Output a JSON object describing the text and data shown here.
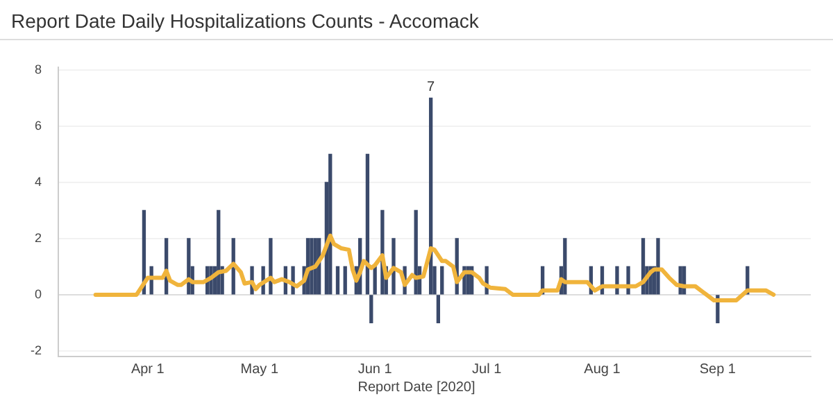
{
  "chart_data": {
    "type": "bar",
    "title": "Report Date Daily Hospitalizations Counts - Accomack",
    "xlabel": "Report Date [2020]",
    "xlim": [
      "2020-03-08",
      "2020-09-26"
    ],
    "xticks": [
      {
        "value": "2020-04-01",
        "label": "Apr 1"
      },
      {
        "value": "2020-05-01",
        "label": "May 1"
      },
      {
        "value": "2020-06-01",
        "label": "Jun 1"
      },
      {
        "value": "2020-07-01",
        "label": "Jul 1"
      },
      {
        "value": "2020-08-01",
        "label": "Aug 1"
      },
      {
        "value": "2020-09-01",
        "label": "Sep 1"
      }
    ],
    "ylim": [
      -2.2,
      8.1
    ],
    "yticks": [
      -2,
      0,
      2,
      4,
      6,
      8
    ],
    "grid": "y",
    "legend": false,
    "annotations": [
      {
        "text": "7",
        "x": "2020-06-16",
        "y": 7
      }
    ],
    "series": [
      {
        "color": "#3b4a6b",
        "x": [
          "2020-03-31",
          "2020-04-02",
          "2020-04-06",
          "2020-04-12",
          "2020-04-13",
          "2020-04-17",
          "2020-04-18",
          "2020-04-19",
          "2020-04-20",
          "2020-04-21",
          "2020-04-24",
          "2020-04-29",
          "2020-05-02",
          "2020-05-04",
          "2020-05-08",
          "2020-05-10",
          "2020-05-13",
          "2020-05-14",
          "2020-05-15",
          "2020-05-16",
          "2020-05-17",
          "2020-05-19",
          "2020-05-20",
          "2020-05-22",
          "2020-05-24",
          "2020-05-27",
          "2020-05-28",
          "2020-05-30",
          "2020-05-31",
          "2020-06-01",
          "2020-06-03",
          "2020-06-04",
          "2020-06-06",
          "2020-06-09",
          "2020-06-12",
          "2020-06-13",
          "2020-06-16",
          "2020-06-17",
          "2020-06-18",
          "2020-06-19",
          "2020-06-23",
          "2020-06-25",
          "2020-06-26",
          "2020-06-27",
          "2020-07-01",
          "2020-07-16",
          "2020-07-21",
          "2020-07-22",
          "2020-07-29",
          "2020-08-01",
          "2020-08-05",
          "2020-08-08",
          "2020-08-12",
          "2020-08-13",
          "2020-08-14",
          "2020-08-15",
          "2020-08-16",
          "2020-08-22",
          "2020-08-23",
          "2020-09-01",
          "2020-09-09"
        ],
        "values": [
          3,
          1,
          2,
          2,
          1,
          1,
          1,
          1,
          3,
          1,
          2,
          1,
          1,
          2,
          1,
          1,
          1,
          2,
          2,
          2,
          2,
          4,
          5,
          1,
          1,
          1,
          2,
          5,
          -1,
          1,
          3,
          1,
          2,
          1,
          3,
          1,
          7,
          1,
          -1,
          1,
          2,
          1,
          1,
          1,
          1,
          1,
          1,
          2,
          1,
          1,
          1,
          1,
          2,
          1,
          1,
          1,
          2,
          1,
          1,
          -1,
          1
        ]
      },
      {
        "type": "line",
        "color": "#f0b43c",
        "x": [
          "2020-03-18",
          "2020-03-29",
          "2020-03-31",
          "2020-04-01",
          "2020-04-05",
          "2020-04-06",
          "2020-04-07",
          "2020-04-09",
          "2020-04-10",
          "2020-04-12",
          "2020-04-13",
          "2020-04-16",
          "2020-04-18",
          "2020-04-20",
          "2020-04-22",
          "2020-04-24",
          "2020-04-26",
          "2020-04-27",
          "2020-04-29",
          "2020-04-30",
          "2020-05-01",
          "2020-05-04",
          "2020-05-05",
          "2020-05-07",
          "2020-05-09",
          "2020-05-11",
          "2020-05-13",
          "2020-05-14",
          "2020-05-16",
          "2020-05-18",
          "2020-05-20",
          "2020-05-21",
          "2020-05-23",
          "2020-05-25",
          "2020-05-26",
          "2020-05-27",
          "2020-05-28",
          "2020-05-29",
          "2020-05-31",
          "2020-06-01",
          "2020-06-03",
          "2020-06-04",
          "2020-06-06",
          "2020-06-08",
          "2020-06-09",
          "2020-06-11",
          "2020-06-12",
          "2020-06-14",
          "2020-06-16",
          "2020-06-17",
          "2020-06-19",
          "2020-06-20",
          "2020-06-22",
          "2020-06-23",
          "2020-06-25",
          "2020-06-27",
          "2020-06-29",
          "2020-06-30",
          "2020-07-02",
          "2020-07-06",
          "2020-07-08",
          "2020-07-15",
          "2020-07-16",
          "2020-07-20",
          "2020-07-21",
          "2020-07-22",
          "2020-07-26",
          "2020-07-28",
          "2020-07-30",
          "2020-08-01",
          "2020-08-04",
          "2020-08-10",
          "2020-08-12",
          "2020-08-14",
          "2020-08-15",
          "2020-08-17",
          "2020-08-19",
          "2020-08-21",
          "2020-08-23",
          "2020-08-26",
          "2020-08-28",
          "2020-08-31",
          "2020-09-06",
          "2020-09-09",
          "2020-09-14",
          "2020-09-16"
        ],
        "values": [
          0,
          0,
          0.4,
          0.6,
          0.6,
          0.85,
          0.5,
          0.35,
          0.35,
          0.55,
          0.45,
          0.45,
          0.6,
          0.8,
          0.85,
          1.1,
          0.8,
          0.4,
          0.45,
          0.2,
          0.35,
          0.6,
          0.45,
          0.55,
          0.45,
          0.3,
          0.5,
          0.9,
          1.0,
          1.4,
          2.1,
          1.8,
          1.65,
          1.6,
          0.9,
          0.5,
          0.8,
          1.2,
          0.95,
          1.05,
          1.4,
          0.6,
          0.95,
          0.8,
          0.35,
          0.7,
          0.6,
          0.65,
          1.65,
          1.6,
          1.2,
          1.2,
          1.0,
          0.45,
          0.8,
          0.8,
          0.6,
          0.4,
          0.25,
          0.2,
          0,
          0,
          0.15,
          0.15,
          0.55,
          0.45,
          0.45,
          0.45,
          0.15,
          0.3,
          0.3,
          0.3,
          0.45,
          0.8,
          0.9,
          0.9,
          0.6,
          0.35,
          0.3,
          0.3,
          0.1,
          -0.2,
          -0.2,
          0.15,
          0.15,
          0
        ]
      }
    ]
  }
}
